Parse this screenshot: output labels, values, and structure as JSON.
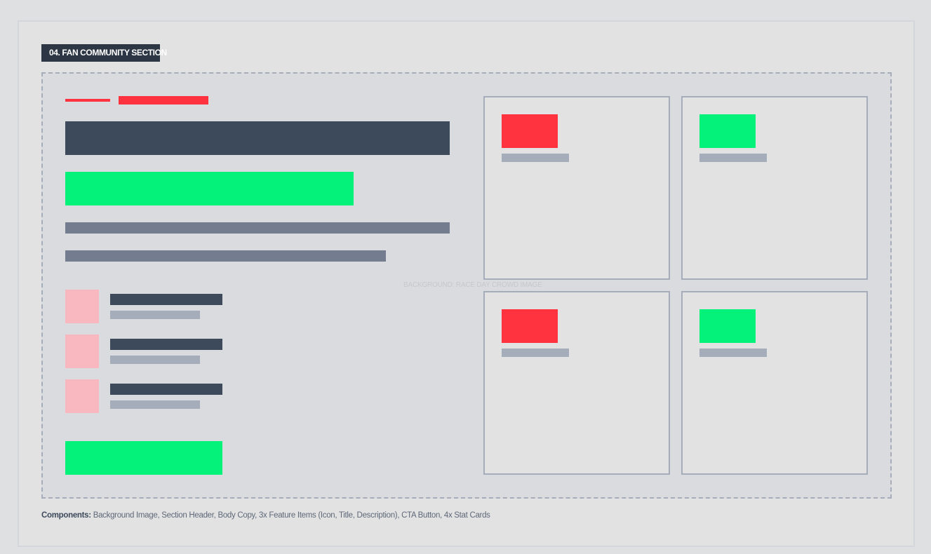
{
  "section": {
    "tag_label": "04. FAN COMMUNITY SECTION",
    "background_label": "BACKGROUND: RACE DAY CROWD IMAGE"
  },
  "feature_items": [
    {
      "icon": "feature-icon-placeholder"
    },
    {
      "icon": "feature-icon-placeholder"
    },
    {
      "icon": "feature-icon-placeholder"
    }
  ],
  "stat_cards": [
    {
      "accent": "#ff333f"
    },
    {
      "accent": "#05f27a"
    },
    {
      "accent": "#ff333f"
    },
    {
      "accent": "#05f27a"
    }
  ],
  "colors": {
    "accent_red": "#ff333f",
    "accent_green": "#05f27a",
    "navy": "#3d4a5c",
    "slate": "#737d8f",
    "light_gray": "#a6adba",
    "pink": "#f9b8c0",
    "tag_bg": "#2c3644"
  },
  "caption": {
    "label": "Components:",
    "text": " Background Image, Section Header, Body Copy, 3x Feature Items (Icon, Title, Description), CTA Button, 4x Stat Cards"
  }
}
